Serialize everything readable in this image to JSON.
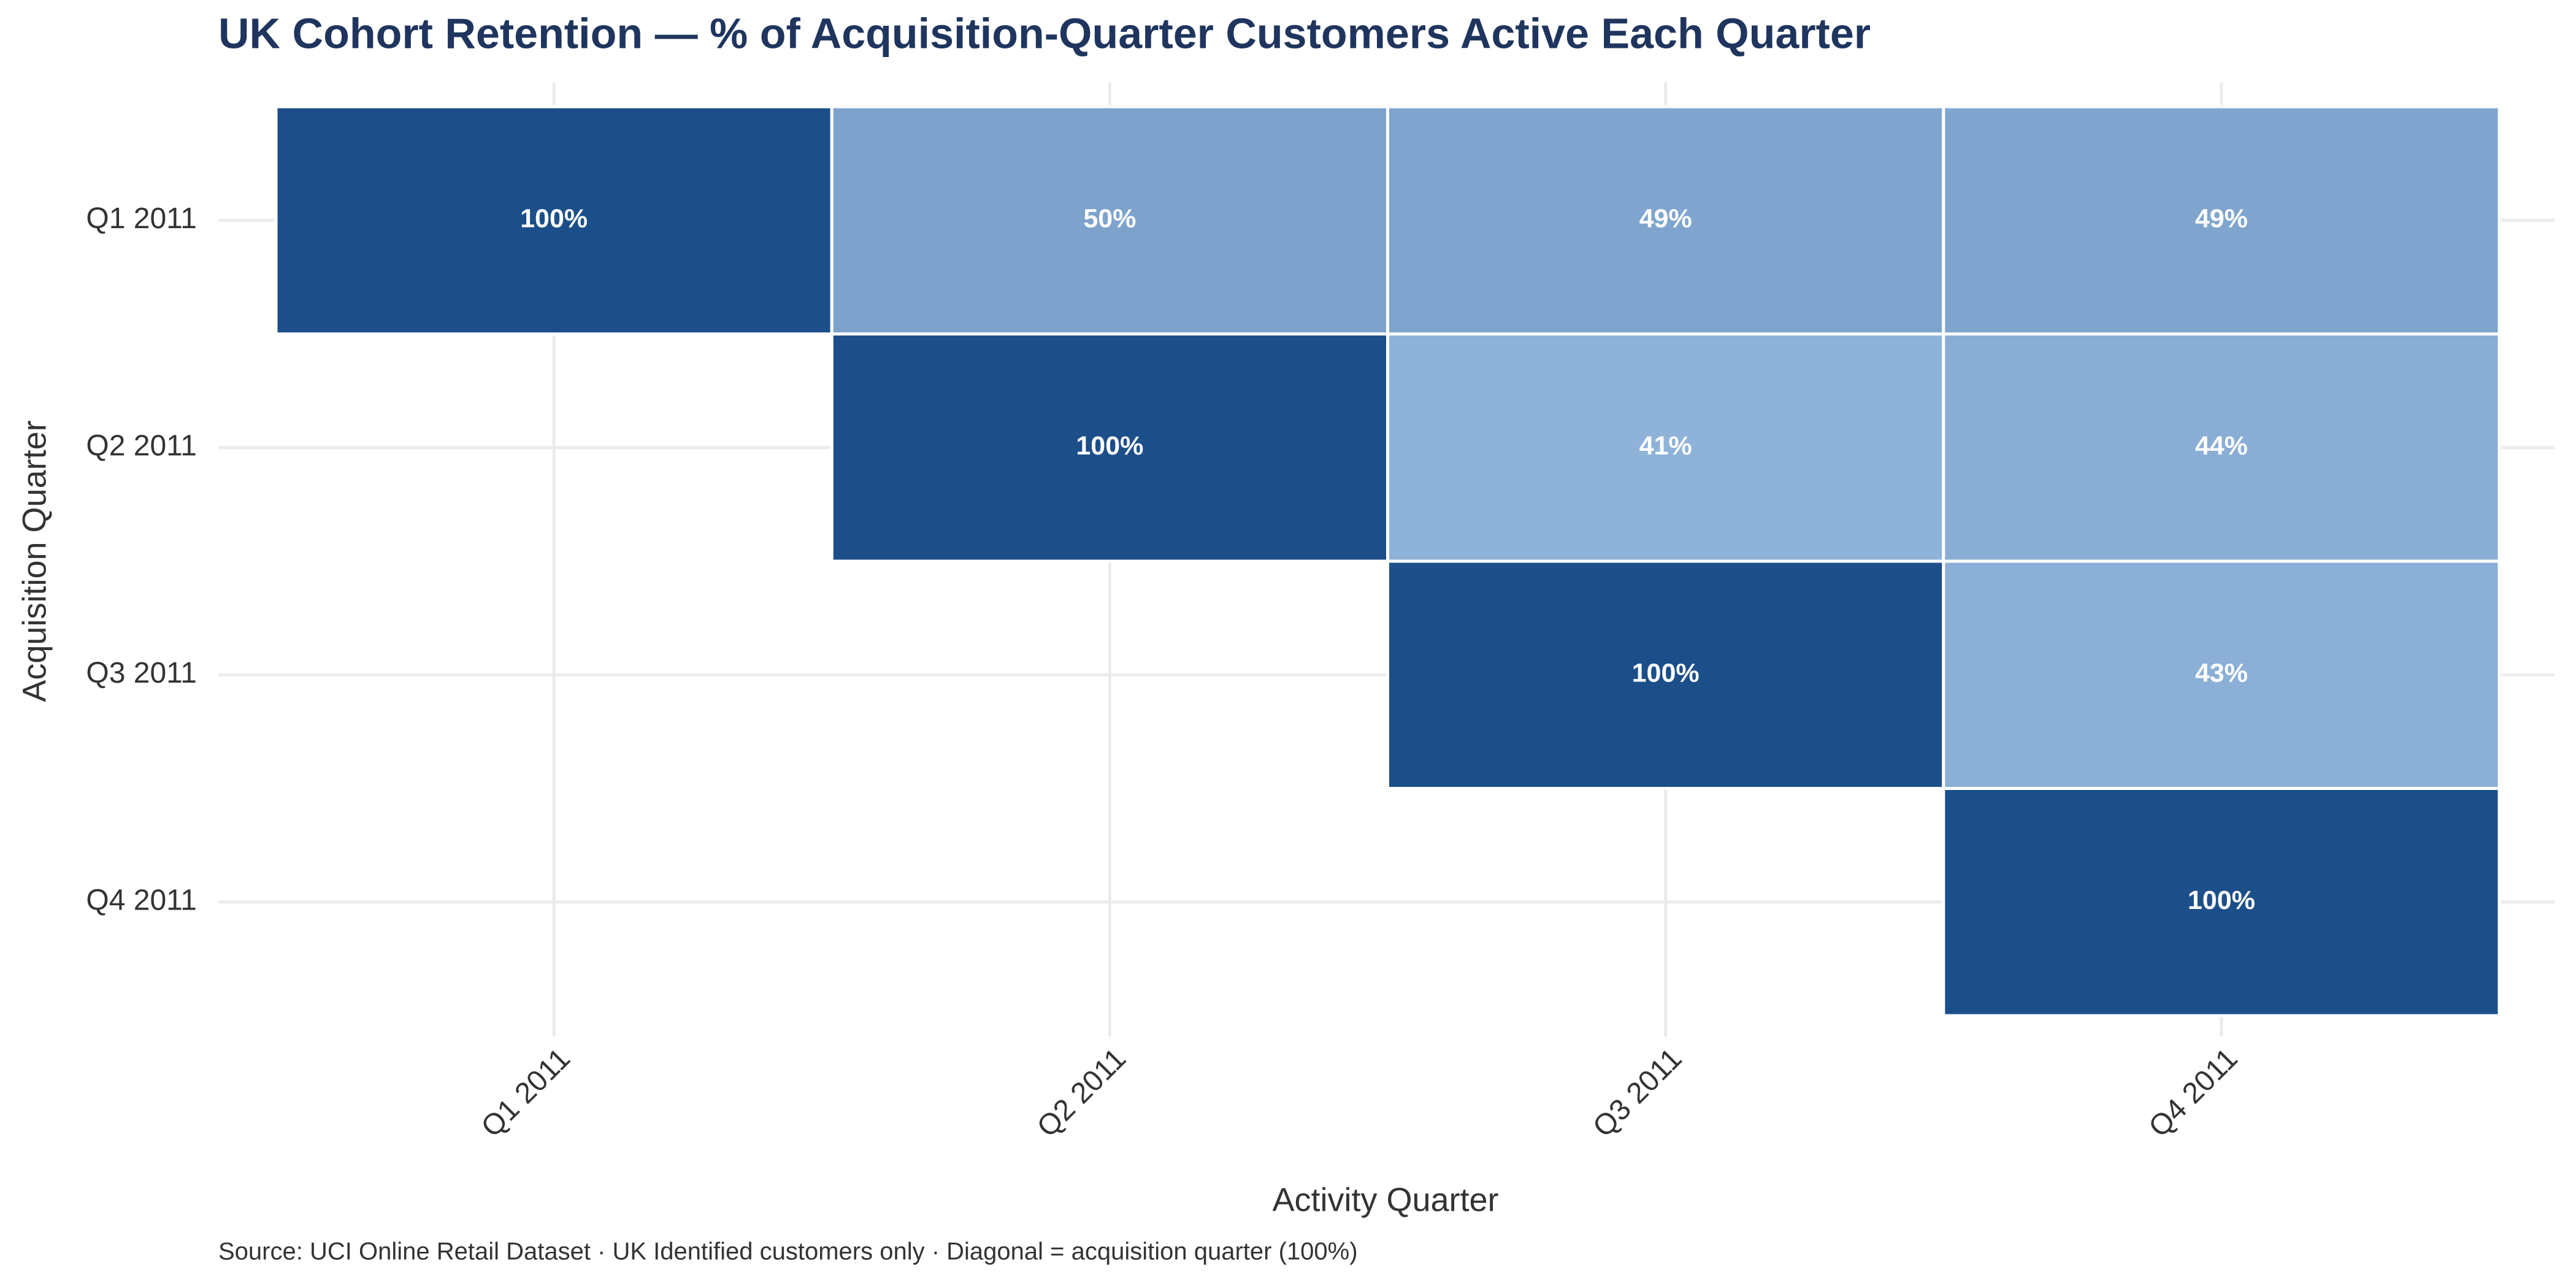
{
  "chart_data": {
    "type": "heatmap",
    "title": "UK Cohort Retention — % of Acquisition-Quarter Customers Active Each Quarter",
    "x_label": "Activity Quarter",
    "y_label": "Acquisition Quarter",
    "caption": "Source: UCI Online Retail Dataset · UK Identified customers only · Diagonal = acquisition quarter (100%)",
    "x": [
      "Q1 2011",
      "Q2 2011",
      "Q3 2011",
      "Q4 2011"
    ],
    "y": [
      "Q1 2011",
      "Q2 2011",
      "Q3 2011",
      "Q4 2011"
    ],
    "values": [
      [
        100,
        50,
        49,
        49
      ],
      [
        null,
        100,
        41,
        44
      ],
      [
        null,
        null,
        100,
        43
      ],
      [
        null,
        null,
        null,
        100
      ]
    ],
    "value_labels": [
      [
        "100%",
        "50%",
        "49%",
        "49%"
      ],
      [
        null,
        "100%",
        "41%",
        "44%"
      ],
      [
        null,
        null,
        "100%",
        "43%"
      ],
      [
        null,
        null,
        null,
        "100%"
      ]
    ],
    "color_low": "#8fb2d9",
    "color_high": "#1c4f89",
    "grid": true
  }
}
